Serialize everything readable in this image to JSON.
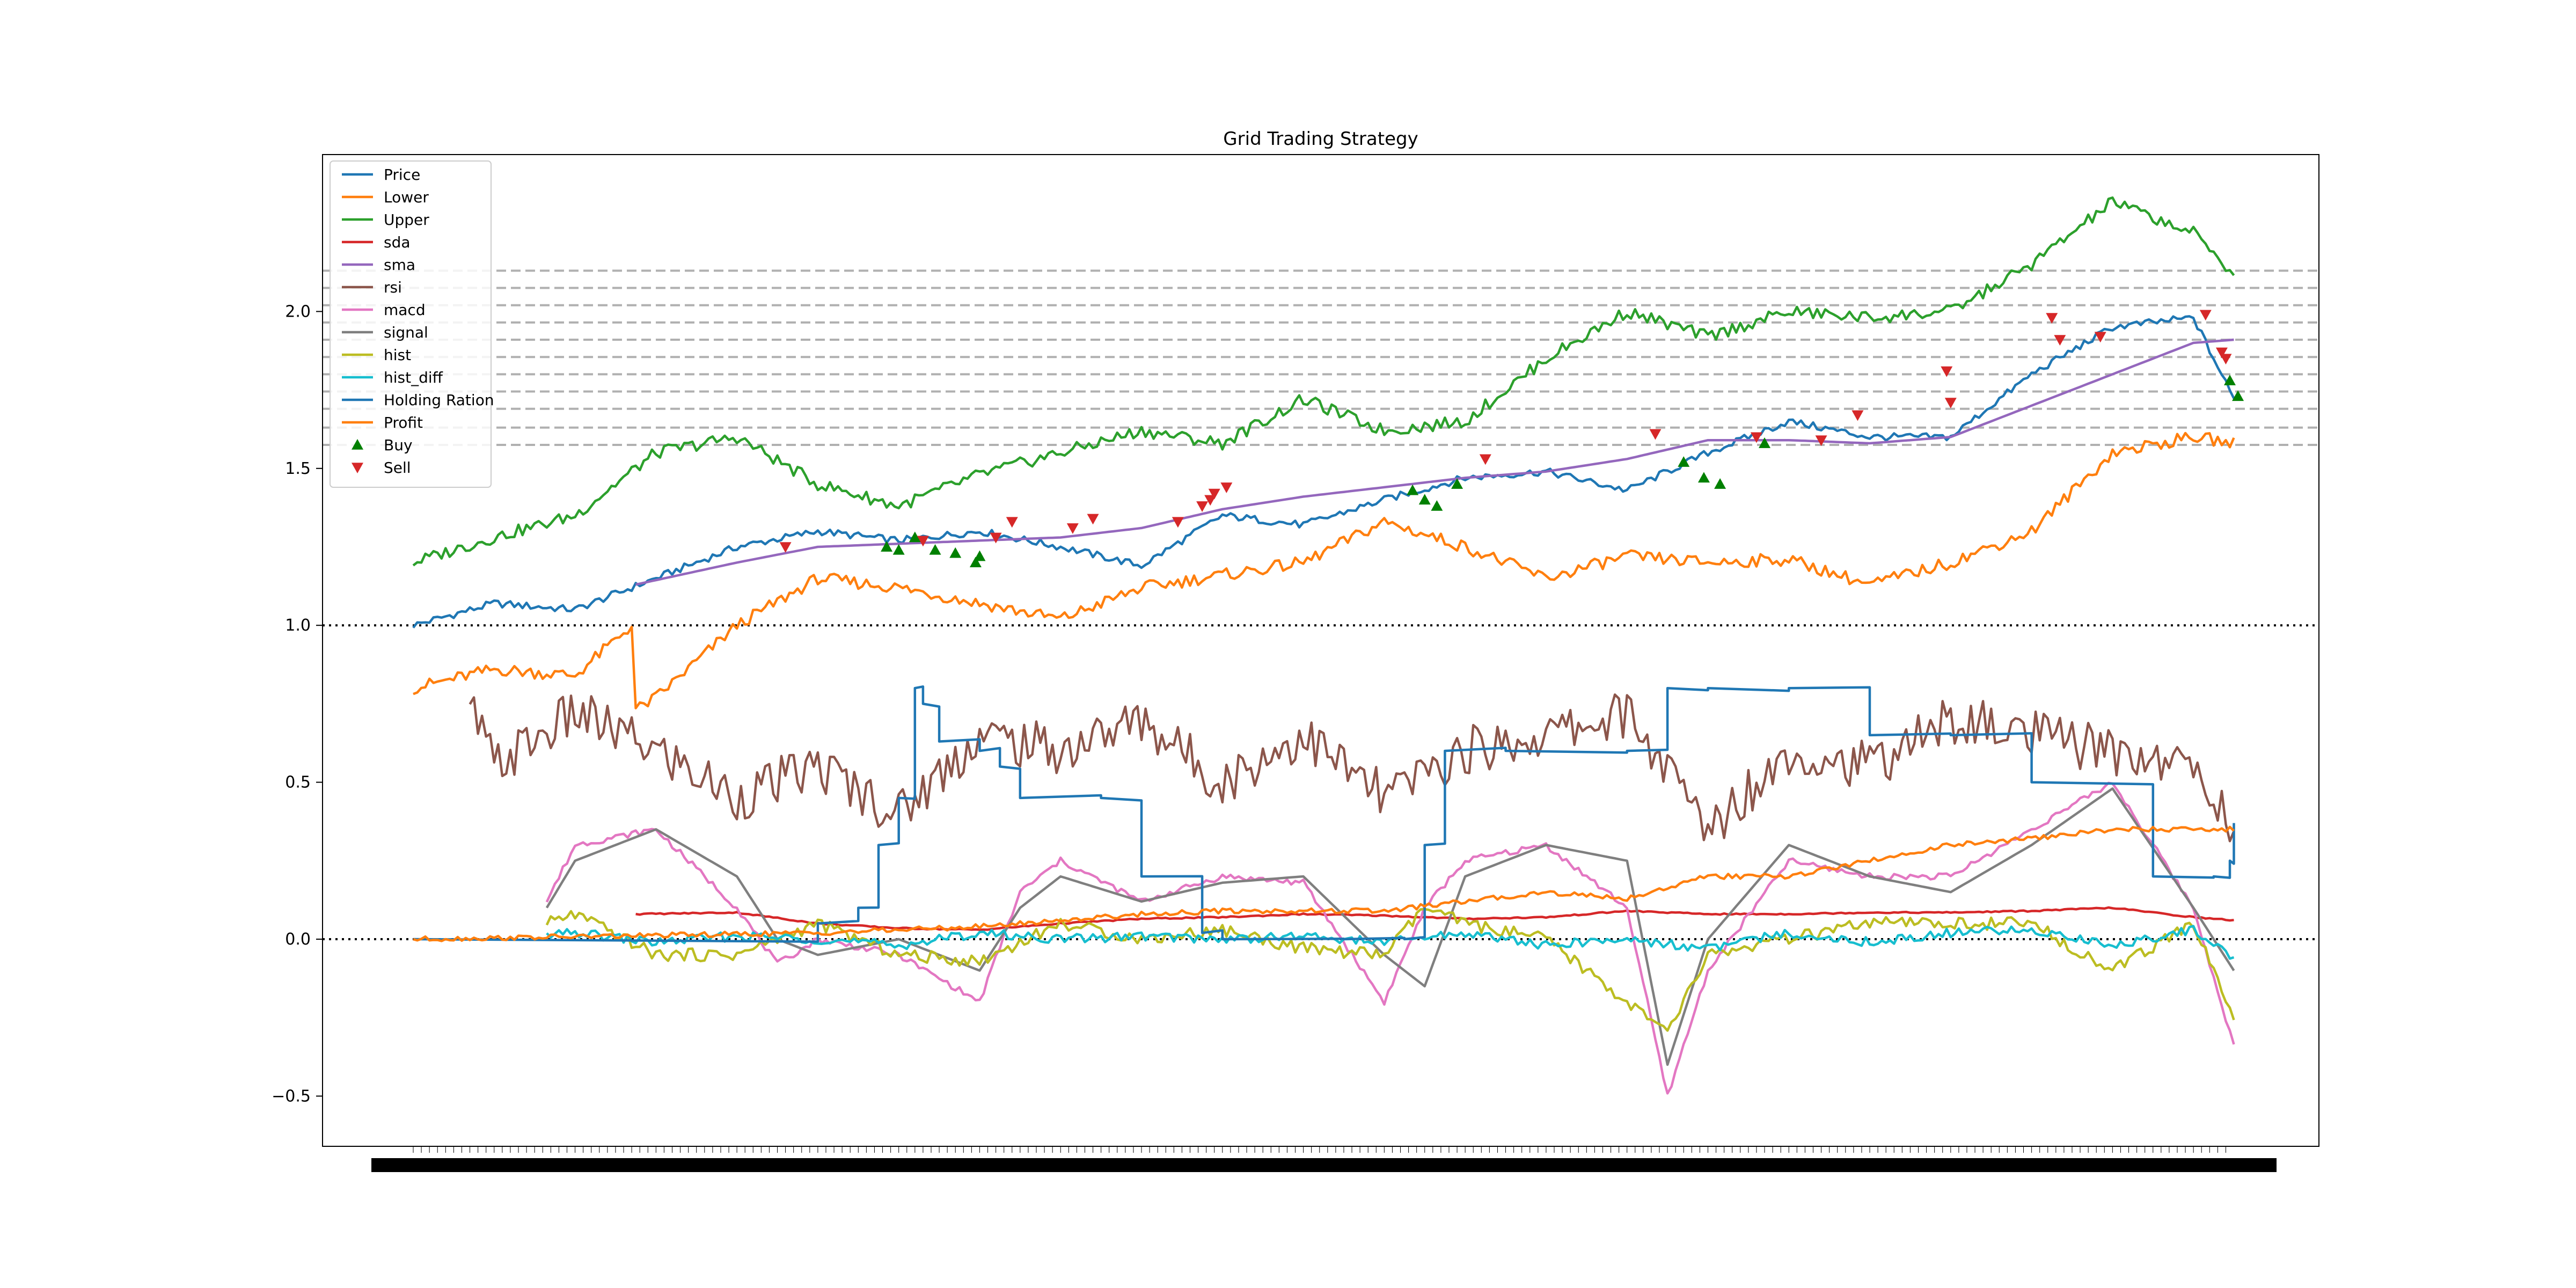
{
  "chart_data": {
    "type": "line",
    "title": "Grid Trading Strategy",
    "xlabel": "",
    "ylabel": "",
    "ylim": [
      -0.66,
      2.5
    ],
    "y_ticks": [
      -0.5,
      0.0,
      0.5,
      1.0,
      1.5,
      2.0
    ],
    "y_tick_labels": [
      "−0.5",
      "0.0",
      "0.5",
      "1.0",
      "1.5",
      "2.0"
    ],
    "x_tick_labels_note": "dense date tick labels overlap into an unreadable black band",
    "n_points": 450,
    "grid": false,
    "legend_position": "upper left",
    "reference_lines": [
      {
        "y": 1.0,
        "style": "dotted",
        "color": "#000000"
      },
      {
        "y": 0.0,
        "style": "dotted",
        "color": "#000000"
      }
    ],
    "grid_levels": [
      1.575,
      1.63,
      1.69,
      1.745,
      1.8,
      1.855,
      1.91,
      1.965,
      2.02,
      2.075,
      2.13
    ],
    "series": [
      {
        "name": "Price",
        "color": "#1f77b4",
        "x": [
          0,
          20,
          40,
          60,
          80,
          100,
          120,
          140,
          160,
          180,
          200,
          220,
          240,
          260,
          280,
          300,
          320,
          340,
          360,
          380,
          400,
          420,
          440,
          450
        ],
        "values": [
          1.0,
          1.07,
          1.05,
          1.15,
          1.25,
          1.3,
          1.27,
          1.3,
          1.25,
          1.19,
          1.35,
          1.32,
          1.4,
          1.47,
          1.49,
          1.43,
          1.55,
          1.65,
          1.6,
          1.6,
          1.8,
          1.95,
          1.98,
          1.72
        ]
      },
      {
        "name": "Lower",
        "color": "#ff7f0e",
        "x": [
          0,
          20,
          40,
          54,
          55,
          60,
          80,
          100,
          120,
          140,
          160,
          180,
          200,
          220,
          240,
          260,
          280,
          300,
          320,
          340,
          360,
          380,
          400,
          420,
          440,
          450
        ],
        "values": [
          0.8,
          0.86,
          0.84,
          1.0,
          0.73,
          0.77,
          1.0,
          1.15,
          1.12,
          1.07,
          1.02,
          1.12,
          1.16,
          1.2,
          1.33,
          1.25,
          1.15,
          1.22,
          1.2,
          1.21,
          1.13,
          1.2,
          1.3,
          1.55,
          1.6,
          1.58
        ]
      },
      {
        "name": "Upper",
        "color": "#2ca02c",
        "x": [
          0,
          20,
          40,
          60,
          80,
          100,
          120,
          140,
          160,
          180,
          200,
          220,
          240,
          260,
          280,
          300,
          320,
          340,
          360,
          380,
          400,
          420,
          440,
          450
        ],
        "values": [
          1.2,
          1.28,
          1.35,
          1.55,
          1.6,
          1.45,
          1.38,
          1.48,
          1.55,
          1.62,
          1.58,
          1.72,
          1.62,
          1.65,
          1.85,
          2.0,
          1.92,
          2.0,
          1.98,
          2.0,
          2.15,
          2.35,
          2.25,
          2.12
        ]
      },
      {
        "name": "sda",
        "color": "#d62728",
        "x": [
          55,
          80,
          100,
          120,
          140,
          160,
          180,
          200,
          220,
          240,
          260,
          280,
          300,
          320,
          340,
          360,
          380,
          400,
          420,
          440,
          450
        ],
        "values": [
          0.08,
          0.085,
          0.05,
          0.035,
          0.03,
          0.05,
          0.065,
          0.07,
          0.08,
          0.075,
          0.065,
          0.07,
          0.09,
          0.08,
          0.08,
          0.085,
          0.085,
          0.09,
          0.1,
          0.07,
          0.06
        ]
      },
      {
        "name": "sma",
        "color": "#9467bd",
        "x": [
          55,
          80,
          100,
          120,
          140,
          160,
          180,
          200,
          220,
          240,
          260,
          280,
          300,
          320,
          340,
          360,
          380,
          400,
          420,
          440,
          450
        ],
        "values": [
          1.13,
          1.2,
          1.25,
          1.26,
          1.27,
          1.28,
          1.31,
          1.37,
          1.41,
          1.44,
          1.47,
          1.49,
          1.53,
          1.59,
          1.59,
          1.58,
          1.6,
          1.7,
          1.8,
          1.9,
          1.91
        ]
      },
      {
        "name": "rsi",
        "color": "#8c564b",
        "x": [
          14,
          20,
          40,
          60,
          80,
          100,
          120,
          140,
          160,
          180,
          200,
          220,
          240,
          260,
          280,
          300,
          320,
          340,
          360,
          380,
          400,
          420,
          440,
          450
        ],
        "values": [
          0.75,
          0.55,
          0.72,
          0.6,
          0.45,
          0.55,
          0.4,
          0.65,
          0.6,
          0.7,
          0.5,
          0.65,
          0.45,
          0.6,
          0.65,
          0.72,
          0.35,
          0.6,
          0.55,
          0.7,
          0.65,
          0.6,
          0.55,
          0.35
        ]
      },
      {
        "name": "macd",
        "color": "#e377c2",
        "x": [
          33,
          40,
          60,
          80,
          90,
          100,
          120,
          140,
          150,
          160,
          180,
          200,
          220,
          240,
          250,
          260,
          280,
          300,
          310,
          320,
          340,
          360,
          380,
          400,
          420,
          440,
          450
        ],
        "values": [
          0.12,
          0.3,
          0.35,
          0.1,
          -0.08,
          0.0,
          -0.05,
          -0.2,
          0.15,
          0.25,
          0.12,
          0.2,
          0.18,
          -0.2,
          0.1,
          0.25,
          0.3,
          0.1,
          -0.5,
          -0.1,
          0.25,
          0.2,
          0.2,
          0.35,
          0.5,
          0.1,
          -0.34
        ]
      },
      {
        "name": "signal",
        "color": "#7f7f7f",
        "x": [
          33,
          40,
          60,
          80,
          90,
          100,
          120,
          140,
          150,
          160,
          180,
          200,
          220,
          240,
          250,
          260,
          280,
          300,
          310,
          320,
          340,
          360,
          380,
          400,
          420,
          440,
          450
        ],
        "values": [
          0.1,
          0.25,
          0.35,
          0.2,
          0.0,
          -0.05,
          0.0,
          -0.1,
          0.1,
          0.2,
          0.12,
          0.18,
          0.2,
          -0.05,
          -0.15,
          0.2,
          0.3,
          0.25,
          -0.4,
          0.0,
          0.3,
          0.2,
          0.15,
          0.3,
          0.48,
          0.1,
          -0.1
        ]
      },
      {
        "name": "hist",
        "color": "#bcbd22",
        "x": [
          33,
          40,
          60,
          80,
          100,
          120,
          140,
          160,
          180,
          200,
          220,
          240,
          250,
          260,
          280,
          300,
          310,
          320,
          340,
          360,
          380,
          400,
          420,
          440,
          450
        ],
        "values": [
          0.05,
          0.08,
          -0.05,
          -0.05,
          0.05,
          -0.05,
          -0.07,
          0.05,
          0.0,
          0.03,
          -0.03,
          -0.05,
          0.1,
          0.05,
          0.0,
          -0.2,
          -0.3,
          -0.05,
          0.0,
          0.05,
          0.05,
          0.05,
          -0.1,
          0.05,
          -0.25
        ]
      },
      {
        "name": "hist_diff",
        "color": "#17becf",
        "x": [
          33,
          40,
          60,
          80,
          100,
          120,
          140,
          160,
          180,
          200,
          220,
          240,
          260,
          280,
          300,
          320,
          340,
          360,
          380,
          400,
          420,
          440,
          450
        ],
        "values": [
          0.01,
          0.02,
          -0.01,
          0.01,
          0.0,
          -0.02,
          0.02,
          0.0,
          0.01,
          0.0,
          0.01,
          -0.01,
          0.02,
          -0.02,
          0.0,
          -0.03,
          0.02,
          -0.01,
          0.02,
          0.03,
          -0.02,
          0.03,
          -0.06
        ]
      },
      {
        "name": "Holding Ration",
        "color": "#1f77b4",
        "x": [
          0,
          100,
          110,
          115,
          120,
          124,
          126,
          130,
          140,
          145,
          150,
          170,
          180,
          195,
          200,
          230,
          245,
          250,
          255,
          270,
          300,
          310,
          320,
          340,
          360,
          380,
          400,
          430,
          445,
          449,
          450
        ],
        "values": [
          0.0,
          0.05,
          0.1,
          0.3,
          0.45,
          0.8,
          0.75,
          0.63,
          0.6,
          0.55,
          0.45,
          0.45,
          0.2,
          0.02,
          0.0,
          0.0,
          0.0,
          0.3,
          0.6,
          0.6,
          0.6,
          0.8,
          0.8,
          0.8,
          0.65,
          0.65,
          0.5,
          0.2,
          0.2,
          0.25,
          0.37
        ]
      },
      {
        "name": "Profit",
        "color": "#ff7f0e",
        "x": [
          0,
          100,
          140,
          160,
          180,
          200,
          220,
          240,
          260,
          280,
          300,
          320,
          340,
          360,
          380,
          400,
          420,
          440,
          450
        ],
        "values": [
          0.0,
          0.02,
          0.04,
          0.06,
          0.08,
          0.09,
          0.09,
          0.09,
          0.12,
          0.15,
          0.13,
          0.2,
          0.2,
          0.25,
          0.3,
          0.32,
          0.35,
          0.35,
          0.35
        ]
      }
    ],
    "markers": [
      {
        "name": "Buy",
        "symbol": "triangle-up",
        "color": "#008000",
        "points": [
          [
            117,
            1.25
          ],
          [
            120,
            1.24
          ],
          [
            124,
            1.28
          ],
          [
            129,
            1.24
          ],
          [
            134,
            1.23
          ],
          [
            139,
            1.2
          ],
          [
            140,
            1.22
          ],
          [
            247,
            1.43
          ],
          [
            250,
            1.4
          ],
          [
            253,
            1.38
          ],
          [
            258,
            1.45
          ],
          [
            314,
            1.52
          ],
          [
            319,
            1.47
          ],
          [
            323,
            1.45
          ],
          [
            334,
            1.58
          ],
          [
            449,
            1.78
          ],
          [
            451,
            1.73
          ]
        ]
      },
      {
        "name": "Sell",
        "symbol": "triangle-down",
        "color": "#d62728",
        "points": [
          [
            92,
            1.25
          ],
          [
            126,
            1.27
          ],
          [
            144,
            1.28
          ],
          [
            148,
            1.33
          ],
          [
            163,
            1.31
          ],
          [
            168,
            1.34
          ],
          [
            189,
            1.33
          ],
          [
            195,
            1.38
          ],
          [
            197,
            1.4
          ],
          [
            198,
            1.42
          ],
          [
            201,
            1.44
          ],
          [
            265,
            1.53
          ],
          [
            307,
            1.61
          ],
          [
            332,
            1.6
          ],
          [
            348,
            1.59
          ],
          [
            357,
            1.67
          ],
          [
            380,
            1.71
          ],
          [
            379,
            1.81
          ],
          [
            405,
            1.98
          ],
          [
            407,
            1.91
          ],
          [
            417,
            1.92
          ],
          [
            443,
            1.99
          ],
          [
            447,
            1.87
          ],
          [
            448,
            1.85
          ]
        ]
      }
    ]
  }
}
